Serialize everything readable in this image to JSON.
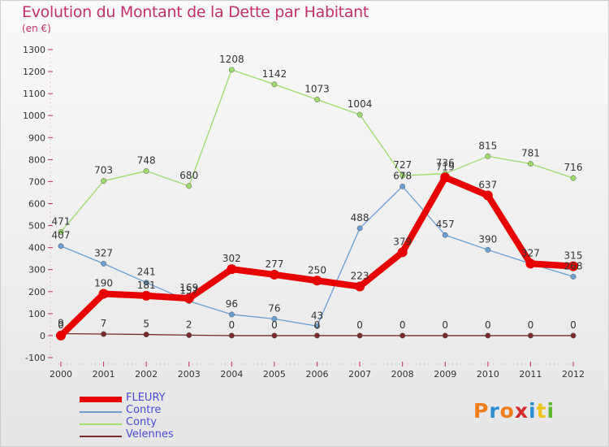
{
  "title": "Evolution du Montant de la Dette par Habitant",
  "subtitle": "(en €)",
  "logo": {
    "text": "Proxiti",
    "colors": [
      "#f07c1a",
      "#2c8fd6",
      "#f07c1a",
      "#d62c2c",
      "#2c8fd6",
      "#f0c31a",
      "#5cb82c"
    ]
  },
  "chart_data": {
    "type": "line",
    "x": [
      "2000",
      "2001",
      "2002",
      "2003",
      "2004",
      "2005",
      "2006",
      "2007",
      "2008",
      "2009",
      "2010",
      "2011",
      "2012"
    ],
    "ylim": [
      -100,
      1300
    ],
    "yticks": [
      -100,
      0,
      100,
      200,
      300,
      400,
      500,
      600,
      700,
      800,
      900,
      1000,
      1100,
      1200,
      1300
    ],
    "grid": false,
    "legend_position": "bottom-left",
    "series": [
      {
        "name": "FLEURY",
        "color": "#e60000",
        "values": [
          0,
          190,
          181,
          169,
          302,
          277,
          250,
          223,
          379,
          719,
          637,
          327,
          315
        ],
        "labels": [
          "0",
          "190",
          "181",
          "169",
          "302",
          "277",
          "250",
          "223",
          "379",
          "719",
          "637",
          "327",
          "315"
        ]
      },
      {
        "name": "Contre",
        "color": "#6a9fd4",
        "values": [
          407,
          327,
          241,
          157,
          96,
          76,
          43,
          488,
          678,
          457,
          390,
          327,
          268
        ],
        "labels": [
          "407",
          "327",
          "241",
          "157",
          "96",
          "76",
          "43",
          "488",
          "678",
          "457",
          "390",
          "",
          "268"
        ]
      },
      {
        "name": "Conty",
        "color": "#9edb6b",
        "values": [
          471,
          703,
          748,
          680,
          1208,
          1142,
          1073,
          1004,
          727,
          736,
          815,
          781,
          716
        ],
        "labels": [
          "471",
          "703",
          "748",
          "680",
          "1208",
          "1142",
          "1073",
          "1004",
          "727",
          "736",
          "815",
          "781",
          "716"
        ]
      },
      {
        "name": "Velennes",
        "color": "#7a2a2a",
        "values": [
          9,
          7,
          5,
          2,
          0,
          0,
          0,
          0,
          0,
          0,
          0,
          0,
          0
        ],
        "labels": [
          "9",
          "7",
          "5",
          "2",
          "0",
          "0",
          "0",
          "0",
          "0",
          "0",
          "0",
          "0",
          "0"
        ]
      }
    ]
  }
}
